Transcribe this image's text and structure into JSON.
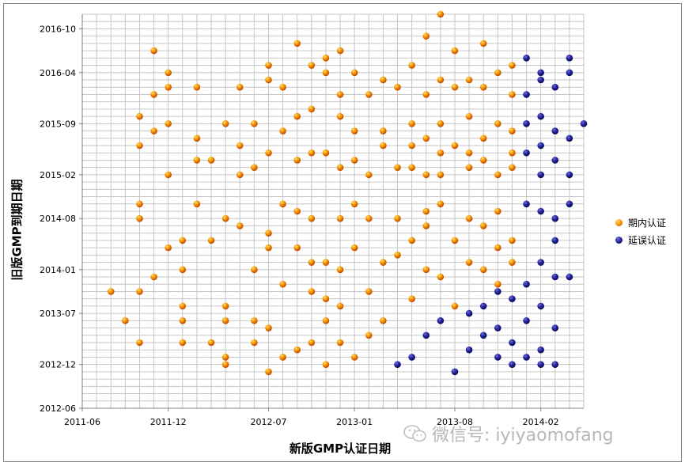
{
  "chart_data": {
    "type": "scatter",
    "title": "",
    "xlabel": "新版GMP认证日期",
    "ylabel": "旧版GMP到期日期",
    "x_ticks": [
      "2011-06",
      "2011-12",
      "2012-07",
      "2013-01",
      "2013-08",
      "2014-02"
    ],
    "y_ticks": [
      "2012-06",
      "2012-12",
      "2013-07",
      "2014-01",
      "2014-08",
      "2015-02",
      "2015-09",
      "2016-04",
      "2016-10"
    ],
    "xlim": [
      "2011-06",
      "2014-05"
    ],
    "ylim": [
      "2012-06",
      "2016-12"
    ],
    "grid": true,
    "legend_position": "right",
    "series": [
      {
        "name": "期内认证",
        "color": "#f08000",
        "points": [
          [
            "2011-08",
            "2013-10"
          ],
          [
            "2011-09",
            "2013-06"
          ],
          [
            "2011-10",
            "2013-03"
          ],
          [
            "2011-10",
            "2013-10"
          ],
          [
            "2011-10",
            "2014-08"
          ],
          [
            "2011-10",
            "2014-10"
          ],
          [
            "2011-10",
            "2015-06"
          ],
          [
            "2011-10",
            "2015-10"
          ],
          [
            "2011-11",
            "2013-12"
          ],
          [
            "2011-11",
            "2016-07"
          ],
          [
            "2011-11",
            "2015-08"
          ],
          [
            "2011-11",
            "2016-01"
          ],
          [
            "2011-12",
            "2016-04"
          ],
          [
            "2011-12",
            "2014-04"
          ],
          [
            "2011-12",
            "2015-02"
          ],
          [
            "2011-12",
            "2015-09"
          ],
          [
            "2011-12",
            "2016-02"
          ],
          [
            "2012-01",
            "2013-08"
          ],
          [
            "2012-01",
            "2013-06"
          ],
          [
            "2012-01",
            "2014-05"
          ],
          [
            "2012-01",
            "2013-03"
          ],
          [
            "2012-01",
            "2014-01"
          ],
          [
            "2012-02",
            "2015-04"
          ],
          [
            "2012-02",
            "2015-07"
          ],
          [
            "2012-02",
            "2016-02"
          ],
          [
            "2012-02",
            "2014-10"
          ],
          [
            "2012-03",
            "2014-05"
          ],
          [
            "2012-03",
            "2015-04"
          ],
          [
            "2012-03",
            "2013-03"
          ],
          [
            "2012-04",
            "2012-12"
          ],
          [
            "2012-04",
            "2013-08"
          ],
          [
            "2012-04",
            "2014-08"
          ],
          [
            "2012-04",
            "2013-06"
          ],
          [
            "2012-04",
            "2013-01"
          ],
          [
            "2012-04",
            "2015-09"
          ],
          [
            "2012-05",
            "2014-07"
          ],
          [
            "2012-05",
            "2015-02"
          ],
          [
            "2012-05",
            "2016-02"
          ],
          [
            "2012-05",
            "2015-06"
          ],
          [
            "2012-06",
            "2015-09"
          ],
          [
            "2012-06",
            "2013-03"
          ],
          [
            "2012-06",
            "2013-06"
          ],
          [
            "2012-06",
            "2014-01"
          ],
          [
            "2012-06",
            "2015-03"
          ],
          [
            "2012-07",
            "2014-04"
          ],
          [
            "2012-07",
            "2015-05"
          ],
          [
            "2012-07",
            "2016-03"
          ],
          [
            "2012-07",
            "2012-11"
          ],
          [
            "2012-07",
            "2016-05"
          ],
          [
            "2012-07",
            "2013-05"
          ],
          [
            "2012-07",
            "2014-06"
          ],
          [
            "2012-08",
            "2013-11"
          ],
          [
            "2012-08",
            "2014-10"
          ],
          [
            "2012-08",
            "2015-08"
          ],
          [
            "2012-08",
            "2016-02"
          ],
          [
            "2012-08",
            "2013-01"
          ],
          [
            "2012-09",
            "2013-02"
          ],
          [
            "2012-09",
            "2014-04"
          ],
          [
            "2012-09",
            "2015-10"
          ],
          [
            "2012-09",
            "2016-08"
          ],
          [
            "2012-09",
            "2014-09"
          ],
          [
            "2012-09",
            "2015-04"
          ],
          [
            "2012-10",
            "2013-03"
          ],
          [
            "2012-10",
            "2014-02"
          ],
          [
            "2012-10",
            "2015-11"
          ],
          [
            "2012-10",
            "2016-05"
          ],
          [
            "2012-10",
            "2013-10"
          ],
          [
            "2012-10",
            "2014-08"
          ],
          [
            "2012-10",
            "2015-05"
          ],
          [
            "2012-11",
            "2013-06"
          ],
          [
            "2012-11",
            "2016-04"
          ],
          [
            "2012-11",
            "2012-12"
          ],
          [
            "2012-11",
            "2015-05"
          ],
          [
            "2012-11",
            "2014-02"
          ],
          [
            "2012-11",
            "2016-06"
          ],
          [
            "2012-11",
            "2013-09"
          ],
          [
            "2012-12",
            "2014-08"
          ],
          [
            "2012-12",
            "2015-03"
          ],
          [
            "2012-12",
            "2016-01"
          ],
          [
            "2012-12",
            "2013-03"
          ],
          [
            "2012-12",
            "2014-01"
          ],
          [
            "2012-12",
            "2015-10"
          ],
          [
            "2012-12",
            "2013-08"
          ],
          [
            "2012-12",
            "2016-07"
          ],
          [
            "2013-01",
            "2015-04"
          ],
          [
            "2013-01",
            "2014-04"
          ],
          [
            "2013-01",
            "2016-04"
          ],
          [
            "2013-01",
            "2013-01"
          ],
          [
            "2013-01",
            "2014-10"
          ],
          [
            "2013-01",
            "2015-08"
          ],
          [
            "2013-02",
            "2016-01"
          ],
          [
            "2013-02",
            "2013-10"
          ],
          [
            "2013-02",
            "2015-02"
          ],
          [
            "2013-02",
            "2014-08"
          ],
          [
            "2013-02",
            "2013-04"
          ],
          [
            "2013-03",
            "2015-08"
          ],
          [
            "2013-03",
            "2014-02"
          ],
          [
            "2013-03",
            "2016-03"
          ],
          [
            "2013-03",
            "2013-06"
          ],
          [
            "2013-03",
            "2015-06"
          ],
          [
            "2013-04",
            "2014-08"
          ],
          [
            "2013-04",
            "2015-03"
          ],
          [
            "2013-04",
            "2016-02"
          ],
          [
            "2013-04",
            "2014-03"
          ],
          [
            "2013-05",
            "2015-06"
          ],
          [
            "2013-05",
            "2013-09"
          ],
          [
            "2013-05",
            "2014-05"
          ],
          [
            "2013-05",
            "2016-05"
          ],
          [
            "2013-05",
            "2015-03"
          ],
          [
            "2013-05",
            "2015-09"
          ],
          [
            "2013-06",
            "2014-09"
          ],
          [
            "2013-06",
            "2015-02"
          ],
          [
            "2013-06",
            "2016-01"
          ],
          [
            "2013-06",
            "2014-01"
          ],
          [
            "2013-06",
            "2015-07"
          ],
          [
            "2013-06",
            "2016-09"
          ],
          [
            "2013-06",
            "2014-07"
          ],
          [
            "2013-07",
            "2015-05"
          ],
          [
            "2013-07",
            "2016-03"
          ],
          [
            "2013-07",
            "2013-12"
          ],
          [
            "2013-07",
            "2015-09"
          ],
          [
            "2013-07",
            "2016-12"
          ],
          [
            "2013-07",
            "2014-10"
          ],
          [
            "2013-07",
            "2015-02"
          ],
          [
            "2013-08",
            "2016-02"
          ],
          [
            "2013-08",
            "2014-05"
          ],
          [
            "2013-08",
            "2015-06"
          ],
          [
            "2013-08",
            "2016-07"
          ],
          [
            "2013-08",
            "2013-08"
          ],
          [
            "2013-09",
            "2015-03"
          ],
          [
            "2013-09",
            "2014-08"
          ],
          [
            "2013-09",
            "2015-10"
          ],
          [
            "2013-09",
            "2016-03"
          ],
          [
            "2013-09",
            "2014-02"
          ],
          [
            "2013-09",
            "2015-05"
          ],
          [
            "2013-10",
            "2016-02"
          ],
          [
            "2013-10",
            "2014-07"
          ],
          [
            "2013-10",
            "2015-04"
          ],
          [
            "2013-10",
            "2016-08"
          ],
          [
            "2013-10",
            "2014-01"
          ],
          [
            "2013-10",
            "2015-07"
          ],
          [
            "2013-11",
            "2014-04"
          ],
          [
            "2013-11",
            "2015-02"
          ],
          [
            "2013-11",
            "2016-04"
          ],
          [
            "2013-11",
            "2013-11"
          ],
          [
            "2013-11",
            "2015-09"
          ],
          [
            "2013-11",
            "2014-09"
          ],
          [
            "2013-12",
            "2015-05"
          ],
          [
            "2013-12",
            "2016-01"
          ],
          [
            "2013-12",
            "2014-05"
          ],
          [
            "2013-12",
            "2015-03"
          ],
          [
            "2013-12",
            "2016-05"
          ],
          [
            "2013-12",
            "2014-02"
          ],
          [
            "2013-12",
            "2015-08"
          ]
        ]
      },
      {
        "name": "延误认证",
        "color": "#1a1a8c",
        "points": [
          [
            "2013-04",
            "2012-12"
          ],
          [
            "2013-05",
            "2013-01"
          ],
          [
            "2013-06",
            "2013-04"
          ],
          [
            "2013-07",
            "2013-06"
          ],
          [
            "2013-08",
            "2012-11"
          ],
          [
            "2013-09",
            "2013-07"
          ],
          [
            "2013-09",
            "2013-02"
          ],
          [
            "2013-10",
            "2013-08"
          ],
          [
            "2013-10",
            "2013-04"
          ],
          [
            "2013-11",
            "2013-10"
          ],
          [
            "2013-11",
            "2013-05"
          ],
          [
            "2013-11",
            "2013-01"
          ],
          [
            "2013-12",
            "2013-09"
          ],
          [
            "2013-12",
            "2013-03"
          ],
          [
            "2013-12",
            "2012-12"
          ],
          [
            "2014-01",
            "2016-06"
          ],
          [
            "2014-01",
            "2016-01"
          ],
          [
            "2014-01",
            "2015-05"
          ],
          [
            "2014-01",
            "2014-10"
          ],
          [
            "2014-01",
            "2013-11"
          ],
          [
            "2014-01",
            "2013-06"
          ],
          [
            "2014-01",
            "2013-01"
          ],
          [
            "2014-01",
            "2015-09"
          ],
          [
            "2014-02",
            "2016-03"
          ],
          [
            "2014-02",
            "2015-10"
          ],
          [
            "2014-02",
            "2015-02"
          ],
          [
            "2014-02",
            "2014-09"
          ],
          [
            "2014-02",
            "2014-02"
          ],
          [
            "2014-02",
            "2013-08"
          ],
          [
            "2014-02",
            "2013-02"
          ],
          [
            "2014-02",
            "2012-12"
          ],
          [
            "2014-02",
            "2016-04"
          ],
          [
            "2014-02",
            "2015-06"
          ],
          [
            "2014-03",
            "2015-04"
          ],
          [
            "2014-03",
            "2014-05"
          ],
          [
            "2014-03",
            "2013-12"
          ],
          [
            "2014-03",
            "2013-05"
          ],
          [
            "2014-03",
            "2012-12"
          ],
          [
            "2014-03",
            "2016-02"
          ],
          [
            "2014-03",
            "2015-08"
          ],
          [
            "2014-03",
            "2014-08"
          ],
          [
            "2014-04",
            "2016-04"
          ],
          [
            "2014-04",
            "2016-06"
          ],
          [
            "2014-04",
            "2015-07"
          ],
          [
            "2014-04",
            "2014-10"
          ],
          [
            "2014-04",
            "2013-12"
          ],
          [
            "2014-04",
            "2015-02"
          ],
          [
            "2014-05",
            "2015-09"
          ]
        ]
      }
    ]
  },
  "legend": {
    "items": [
      {
        "label": "期内认证",
        "color": "#f08000"
      },
      {
        "label": "延误认证",
        "color": "#1a1a8c"
      }
    ]
  },
  "watermark": {
    "text": "微信号: iyiyaomofang"
  }
}
